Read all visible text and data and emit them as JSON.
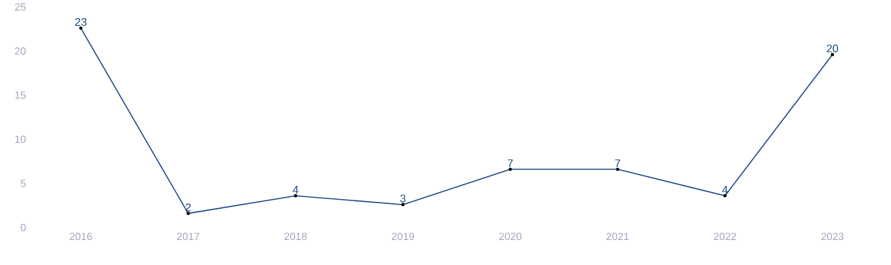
{
  "chart_data": {
    "type": "line",
    "categories": [
      "2016",
      "2017",
      "2018",
      "2019",
      "2020",
      "2021",
      "2022",
      "2023"
    ],
    "values": [
      22.6,
      1.6,
      3.6,
      2.6,
      6.6,
      6.6,
      3.6,
      19.6
    ],
    "value_labels": [
      "23",
      "2",
      "4",
      "3",
      "7",
      "7",
      "4",
      "20"
    ],
    "color": "#1f4785",
    "marker": "circle",
    "line_style": "solid",
    "grid": false,
    "ylim": [
      0,
      25
    ],
    "yticks": [
      0,
      5,
      10,
      15,
      20,
      25
    ]
  }
}
